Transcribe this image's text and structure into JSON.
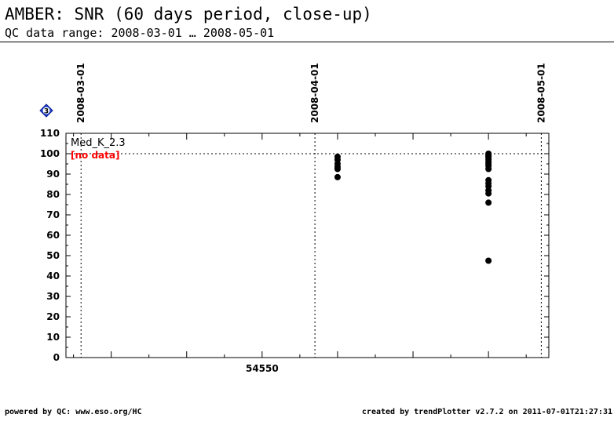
{
  "header": {
    "title": "AMBER: SNR (60 days period, close-up)",
    "subtitle": "QC data range: 2008-03-01 … 2008-05-01"
  },
  "footer": {
    "left": "powered by QC: www.eso.org/HC",
    "right": "created by trendPlotter v2.7.2 on 2011-07-01T21:27:31"
  },
  "badge": {
    "label": "3",
    "icon": "diamond-3-icon",
    "color": "#1f3fd6"
  },
  "chart_data": {
    "type": "scatter",
    "title": "",
    "xlabel": "",
    "ylabel": "",
    "xlim": [
      54524,
      54588
    ],
    "ylim": [
      0,
      110
    ],
    "x_ticks": [
      54550
    ],
    "x_tick_labels": [
      "54550"
    ],
    "y_ticks": [
      0,
      10,
      20,
      30,
      40,
      50,
      60,
      70,
      80,
      90,
      100,
      110
    ],
    "reference_line": 100,
    "date_markers": [
      {
        "label": "2008-03-01",
        "mjd": 54526
      },
      {
        "label": "2008-04-01",
        "mjd": 54557
      },
      {
        "label": "2008-05-01",
        "mjd": 54587
      }
    ],
    "panel_label": "Med_K_2.3",
    "no_data_label": "[no data]",
    "no_data_color": "#ff0000",
    "marker_color": "#000000",
    "grid": false,
    "series": [
      {
        "points": [
          [
            54560,
            98.5
          ],
          [
            54560,
            97
          ],
          [
            54560,
            95
          ],
          [
            54560,
            93.5
          ],
          [
            54560,
            92.5
          ],
          [
            54560,
            88.5
          ],
          [
            54580,
            100
          ],
          [
            54580,
            99.5
          ],
          [
            54580,
            99
          ],
          [
            54580,
            98.5
          ],
          [
            54580,
            98
          ],
          [
            54580,
            97
          ],
          [
            54580,
            96
          ],
          [
            54580,
            95
          ],
          [
            54580,
            94
          ],
          [
            54580,
            92.5
          ],
          [
            54580,
            87
          ],
          [
            54580,
            85.5
          ],
          [
            54580,
            84
          ],
          [
            54580,
            82
          ],
          [
            54580,
            80.5
          ],
          [
            54580,
            76
          ],
          [
            54580,
            47.5
          ]
        ]
      }
    ]
  }
}
